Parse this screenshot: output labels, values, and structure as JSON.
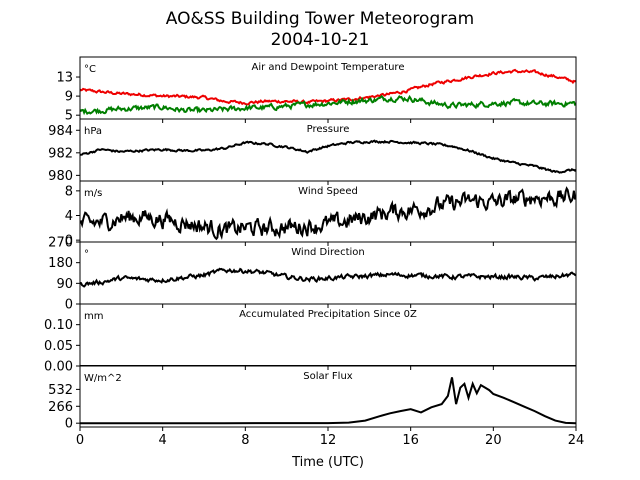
{
  "title_line1": "AO&SS Building Tower Meteorogram",
  "title_line2": "2004-10-21",
  "xlabel": "Time (UTC)",
  "chart_data": {
    "type": "line",
    "x_range": [
      0,
      24
    ],
    "x_ticks": [
      0,
      4,
      8,
      12,
      16,
      20,
      24
    ],
    "x_tick_labels": [
      "0",
      "4",
      "8",
      "12",
      "16",
      "20",
      "24"
    ],
    "panels": [
      {
        "key": "temp",
        "title": "Air and Dewpoint Temperature",
        "unit": "°C",
        "ylim": [
          4.2,
          17.2
        ],
        "y_ticks": [
          5,
          9,
          13
        ],
        "y_tick_labels": [
          "5",
          "9",
          "13"
        ],
        "series": [
          {
            "color": "#ee0000",
            "noise": 0.25,
            "points": [
              [
                0,
                10.3
              ],
              [
                1,
                9.9
              ],
              [
                2,
                9.5
              ],
              [
                3,
                9.3
              ],
              [
                4,
                9.0
              ],
              [
                5,
                8.9
              ],
              [
                6,
                8.7
              ],
              [
                7,
                7.9
              ],
              [
                8,
                7.6
              ],
              [
                9,
                7.9
              ],
              [
                10,
                7.9
              ],
              [
                11,
                7.7
              ],
              [
                12,
                8.0
              ],
              [
                13,
                8.3
              ],
              [
                14,
                8.8
              ],
              [
                15,
                9.4
              ],
              [
                16,
                10.3
              ],
              [
                17,
                11.5
              ],
              [
                18,
                12.3
              ],
              [
                19,
                13.1
              ],
              [
                20,
                13.8
              ],
              [
                21,
                14.2
              ],
              [
                22,
                14.0
              ],
              [
                23,
                13.1
              ],
              [
                24,
                12.0
              ]
            ]
          },
          {
            "color": "#007f00",
            "noise": 0.45,
            "points": [
              [
                0,
                5.8
              ],
              [
                1,
                6.0
              ],
              [
                2,
                6.3
              ],
              [
                3,
                6.5
              ],
              [
                4,
                6.7
              ],
              [
                5,
                6.0
              ],
              [
                6,
                5.9
              ],
              [
                7,
                6.2
              ],
              [
                8,
                6.5
              ],
              [
                9,
                6.6
              ],
              [
                10,
                6.9
              ],
              [
                11,
                7.2
              ],
              [
                12,
                7.5
              ],
              [
                13,
                7.9
              ],
              [
                14,
                8.1
              ],
              [
                15,
                8.6
              ],
              [
                16,
                8.5
              ],
              [
                17,
                7.6
              ],
              [
                18,
                7.0
              ],
              [
                19,
                7.2
              ],
              [
                20,
                7.5
              ],
              [
                21,
                7.6
              ],
              [
                22,
                7.4
              ],
              [
                23,
                7.4
              ],
              [
                24,
                7.5
              ]
            ]
          }
        ]
      },
      {
        "key": "pressure",
        "title": "Pressure",
        "unit": "hPa",
        "ylim": [
          979.5,
          985.0
        ],
        "y_ticks": [
          980,
          982,
          984
        ],
        "y_tick_labels": [
          "980",
          "982",
          "984"
        ],
        "series": [
          {
            "color": "#000000",
            "noise": 0.08,
            "points": [
              [
                0,
                981.8
              ],
              [
                1,
                982.3
              ],
              [
                2,
                982.1
              ],
              [
                3,
                982.2
              ],
              [
                4,
                982.3
              ],
              [
                5,
                982.2
              ],
              [
                6,
                982.2
              ],
              [
                7,
                982.4
              ],
              [
                8,
                982.9
              ],
              [
                9,
                982.8
              ],
              [
                10,
                982.5
              ],
              [
                11,
                982.1
              ],
              [
                12,
                982.6
              ],
              [
                13,
                982.9
              ],
              [
                14,
                983.0
              ],
              [
                15,
                983.0
              ],
              [
                16,
                982.9
              ],
              [
                17,
                982.8
              ],
              [
                18,
                982.6
              ],
              [
                19,
                982.1
              ],
              [
                20,
                981.5
              ],
              [
                21,
                981.1
              ],
              [
                22,
                980.8
              ],
              [
                23,
                980.3
              ],
              [
                24,
                980.5
              ]
            ]
          }
        ]
      },
      {
        "key": "wspd",
        "title": "Wind Speed",
        "unit": "m/s",
        "ylim": [
          -0.3,
          9.6
        ],
        "y_ticks": [
          0,
          4,
          8
        ],
        "y_tick_labels": [
          "0",
          "4",
          "8"
        ],
        "series": [
          {
            "color": "#000000",
            "noise": 1.1,
            "points": [
              [
                0,
                2.6
              ],
              [
                1,
                2.9
              ],
              [
                2,
                3.6
              ],
              [
                3,
                3.8
              ],
              [
                4,
                3.4
              ],
              [
                5,
                2.9
              ],
              [
                6,
                2.2
              ],
              [
                7,
                1.6
              ],
              [
                8,
                2.0
              ],
              [
                9,
                1.9
              ],
              [
                10,
                2.1
              ],
              [
                11,
                2.3
              ],
              [
                12,
                2.6
              ],
              [
                13,
                3.1
              ],
              [
                14,
                3.9
              ],
              [
                15,
                4.6
              ],
              [
                16,
                4.9
              ],
              [
                17,
                5.4
              ],
              [
                18,
                5.9
              ],
              [
                19,
                6.4
              ],
              [
                20,
                6.1
              ],
              [
                21,
                6.6
              ],
              [
                22,
                7.0
              ],
              [
                23,
                6.9
              ],
              [
                24,
                7.2
              ]
            ]
          }
        ]
      },
      {
        "key": "wdir",
        "title": "Wind Direction",
        "unit": "°",
        "ylim": [
          0,
          270
        ],
        "y_ticks": [
          0,
          90,
          180,
          270
        ],
        "y_tick_labels": [
          "0",
          "90",
          "180",
          "270"
        ],
        "series": [
          {
            "color": "#000000",
            "noise": 8,
            "points": [
              [
                0,
                85
              ],
              [
                1,
                95
              ],
              [
                2,
                112
              ],
              [
                3,
                108
              ],
              [
                4,
                105
              ],
              [
                5,
                115
              ],
              [
                6,
                125
              ],
              [
                7,
                148
              ],
              [
                8,
                145
              ],
              [
                9,
                135
              ],
              [
                10,
                118
              ],
              [
                11,
                108
              ],
              [
                12,
                112
              ],
              [
                13,
                118
              ],
              [
                14,
                122
              ],
              [
                15,
                128
              ],
              [
                16,
                125
              ],
              [
                17,
                123
              ],
              [
                18,
                118
              ],
              [
                19,
                120
              ],
              [
                20,
                118
              ],
              [
                21,
                118
              ],
              [
                22,
                112
              ],
              [
                23,
                120
              ],
              [
                24,
                130
              ]
            ]
          }
        ]
      },
      {
        "key": "precip",
        "title": "Accumulated Precipitation Since 0Z",
        "unit": "mm",
        "ylim": [
          0,
          0.15
        ],
        "y_ticks": [
          0.0,
          0.05,
          0.1
        ],
        "y_tick_labels": [
          "0.00",
          "0.05",
          "0.10"
        ],
        "series": [
          {
            "color": "#000000",
            "noise": 0,
            "points": [
              [
                0,
                0
              ],
              [
                24,
                0
              ]
            ]
          }
        ]
      },
      {
        "key": "solar",
        "title": "Solar Flux",
        "unit": "W/m^2",
        "ylim": [
          -60,
          900
        ],
        "y_ticks": [
          0,
          266,
          532
        ],
        "y_tick_labels": [
          "0",
          "266",
          "532"
        ],
        "series": [
          {
            "color": "#000000",
            "noise": 0,
            "points": [
              [
                0,
                0
              ],
              [
                7,
                0
              ],
              [
                12,
                2
              ],
              [
                13,
                10
              ],
              [
                13.8,
                40
              ],
              [
                14.5,
                110
              ],
              [
                15,
                155
              ],
              [
                15.5,
                190
              ],
              [
                16,
                220
              ],
              [
                16.5,
                170
              ],
              [
                17,
                250
              ],
              [
                17.5,
                300
              ],
              [
                17.8,
                430
              ],
              [
                18,
                720
              ],
              [
                18.2,
                300
              ],
              [
                18.4,
                560
              ],
              [
                18.6,
                620
              ],
              [
                18.8,
                400
              ],
              [
                19,
                620
              ],
              [
                19.2,
                470
              ],
              [
                19.4,
                600
              ],
              [
                19.6,
                560
              ],
              [
                19.8,
                520
              ],
              [
                20,
                460
              ],
              [
                20.5,
                400
              ],
              [
                21,
                330
              ],
              [
                21.5,
                260
              ],
              [
                22,
                190
              ],
              [
                22.5,
                110
              ],
              [
                23,
                40
              ],
              [
                23.5,
                5
              ],
              [
                24,
                0
              ]
            ]
          }
        ]
      }
    ]
  }
}
